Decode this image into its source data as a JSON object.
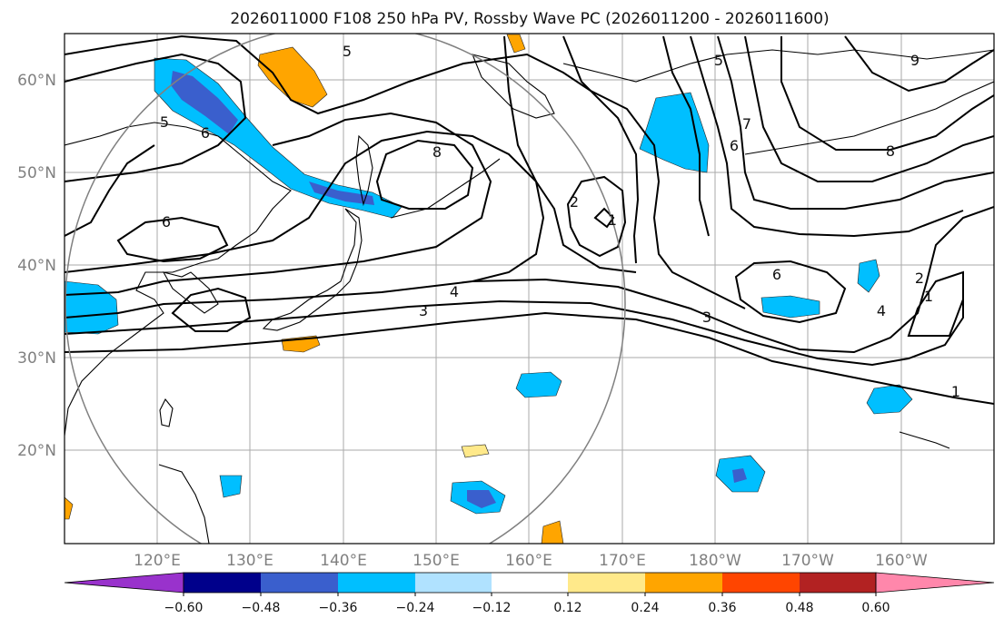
{
  "title": "2026011000 F108 250 hPa PV, Rossby Wave PC (2026011200 - 2026011600)",
  "map": {
    "lon_ticks": [
      "120°E",
      "130°E",
      "140°E",
      "150°E",
      "160°E",
      "170°E",
      "180°W",
      "170°W",
      "160°W"
    ],
    "lat_ticks": [
      "60°N",
      "50°N",
      "40°N",
      "30°N",
      "20°N"
    ],
    "contour_labels": [
      "5",
      "5",
      "6",
      "6",
      "8",
      "2",
      "1",
      "5",
      "7",
      "6",
      "9",
      "8",
      "6",
      "4",
      "2",
      "1",
      "4",
      "3",
      "3",
      "1"
    ]
  },
  "colorbar": {
    "tick_labels": [
      "−0.60",
      "−0.48",
      "−0.36",
      "−0.24",
      "−0.12",
      "0.12",
      "0.24",
      "0.36",
      "0.48",
      "0.60"
    ],
    "colors": [
      "#9932cc",
      "#00008b",
      "#3a5fcd",
      "#00bfff",
      "#b0e2ff",
      "#ffffff",
      "#ffe98a",
      "#ffa500",
      "#ff4500",
      "#b22222",
      "#ff87ab"
    ]
  }
}
